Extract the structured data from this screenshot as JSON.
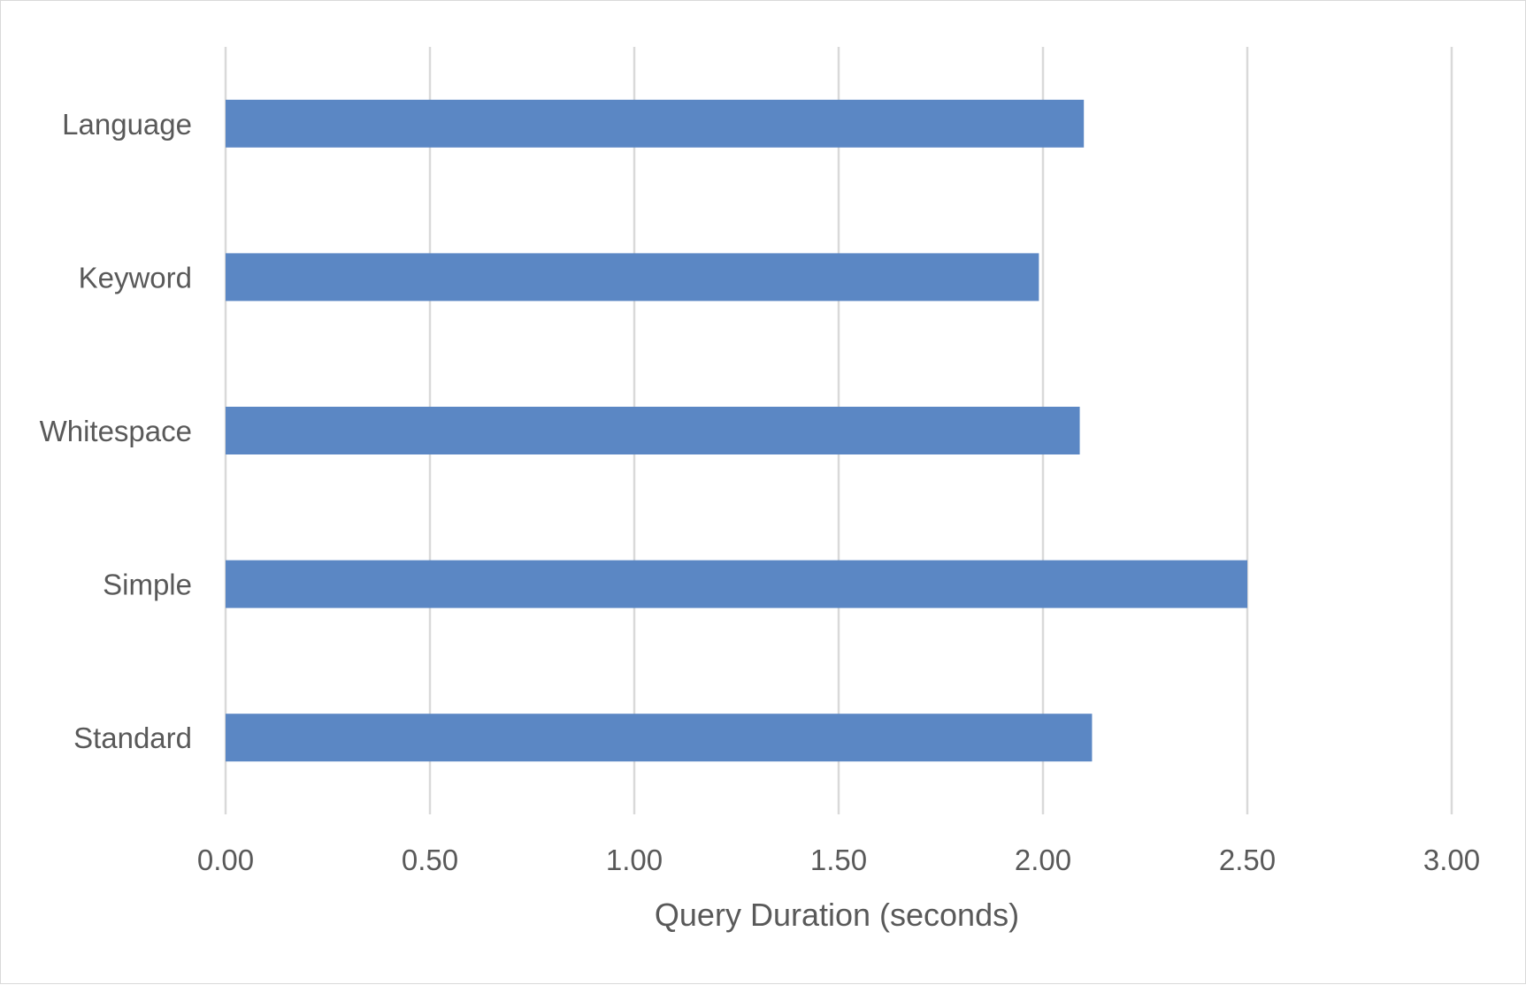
{
  "chart_data": {
    "type": "bar",
    "orientation": "horizontal",
    "categories": [
      "Standard",
      "Simple",
      "Whitespace",
      "Keyword",
      "Language"
    ],
    "values": [
      2.12,
      2.5,
      2.09,
      1.99,
      2.1
    ],
    "xlabel": "Query Duration (seconds)",
    "ylabel": "",
    "xlim": [
      0,
      3
    ],
    "x_ticks": [
      "0.00",
      "0.50",
      "1.00",
      "1.50",
      "2.00",
      "2.50",
      "3.00"
    ],
    "grid": "vertical",
    "legend": "none",
    "bar_color": "#5b87c4",
    "grid_color": "#d9d9d9",
    "text_color": "#595959"
  }
}
